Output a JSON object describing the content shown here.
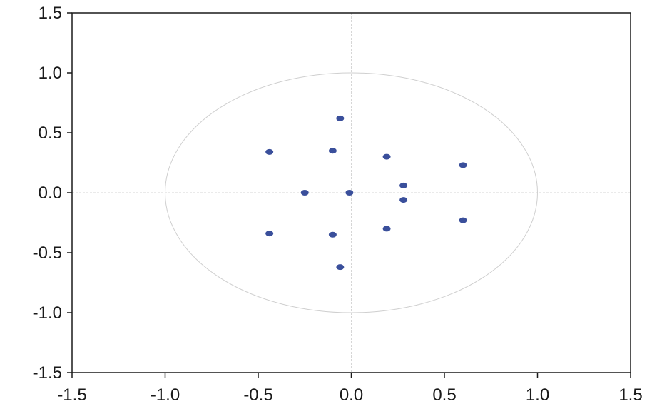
{
  "chart_data": {
    "type": "scatter",
    "title": "",
    "xlabel": "",
    "ylabel": "",
    "xlim": [
      -1.5,
      1.5
    ],
    "ylim": [
      -1.5,
      1.5
    ],
    "x_ticks": [
      -1.5,
      -1.0,
      -0.5,
      0.0,
      0.5,
      1.0,
      1.5
    ],
    "y_ticks": [
      -1.5,
      -1.0,
      -0.5,
      0.0,
      0.5,
      1.0,
      1.5
    ],
    "x_tick_labels": [
      "-1.5",
      "-1.0",
      "-0.5",
      "0.0",
      "0.5",
      "1.0",
      "1.5"
    ],
    "y_tick_labels": [
      "-1.5",
      "-1.0",
      "-0.5",
      "0.0",
      "0.5",
      "1.0",
      "1.5"
    ],
    "grid": false,
    "reference_lines": {
      "x": 0,
      "y": 0
    },
    "unit_circle": {
      "radius": 1,
      "color": "#cfcfcf"
    },
    "point_color": "#3a4f9b",
    "points": [
      {
        "x": -0.06,
        "y": 0.62
      },
      {
        "x": -0.06,
        "y": -0.62
      },
      {
        "x": -0.44,
        "y": 0.34
      },
      {
        "x": -0.44,
        "y": -0.34
      },
      {
        "x": -0.1,
        "y": 0.35
      },
      {
        "x": -0.1,
        "y": -0.35
      },
      {
        "x": 0.19,
        "y": 0.3
      },
      {
        "x": 0.19,
        "y": -0.3
      },
      {
        "x": 0.6,
        "y": 0.23
      },
      {
        "x": 0.6,
        "y": -0.23
      },
      {
        "x": 0.28,
        "y": 0.06
      },
      {
        "x": 0.28,
        "y": -0.06
      },
      {
        "x": -0.25,
        "y": 0.0
      },
      {
        "x": -0.01,
        "y": 0.0
      }
    ]
  }
}
